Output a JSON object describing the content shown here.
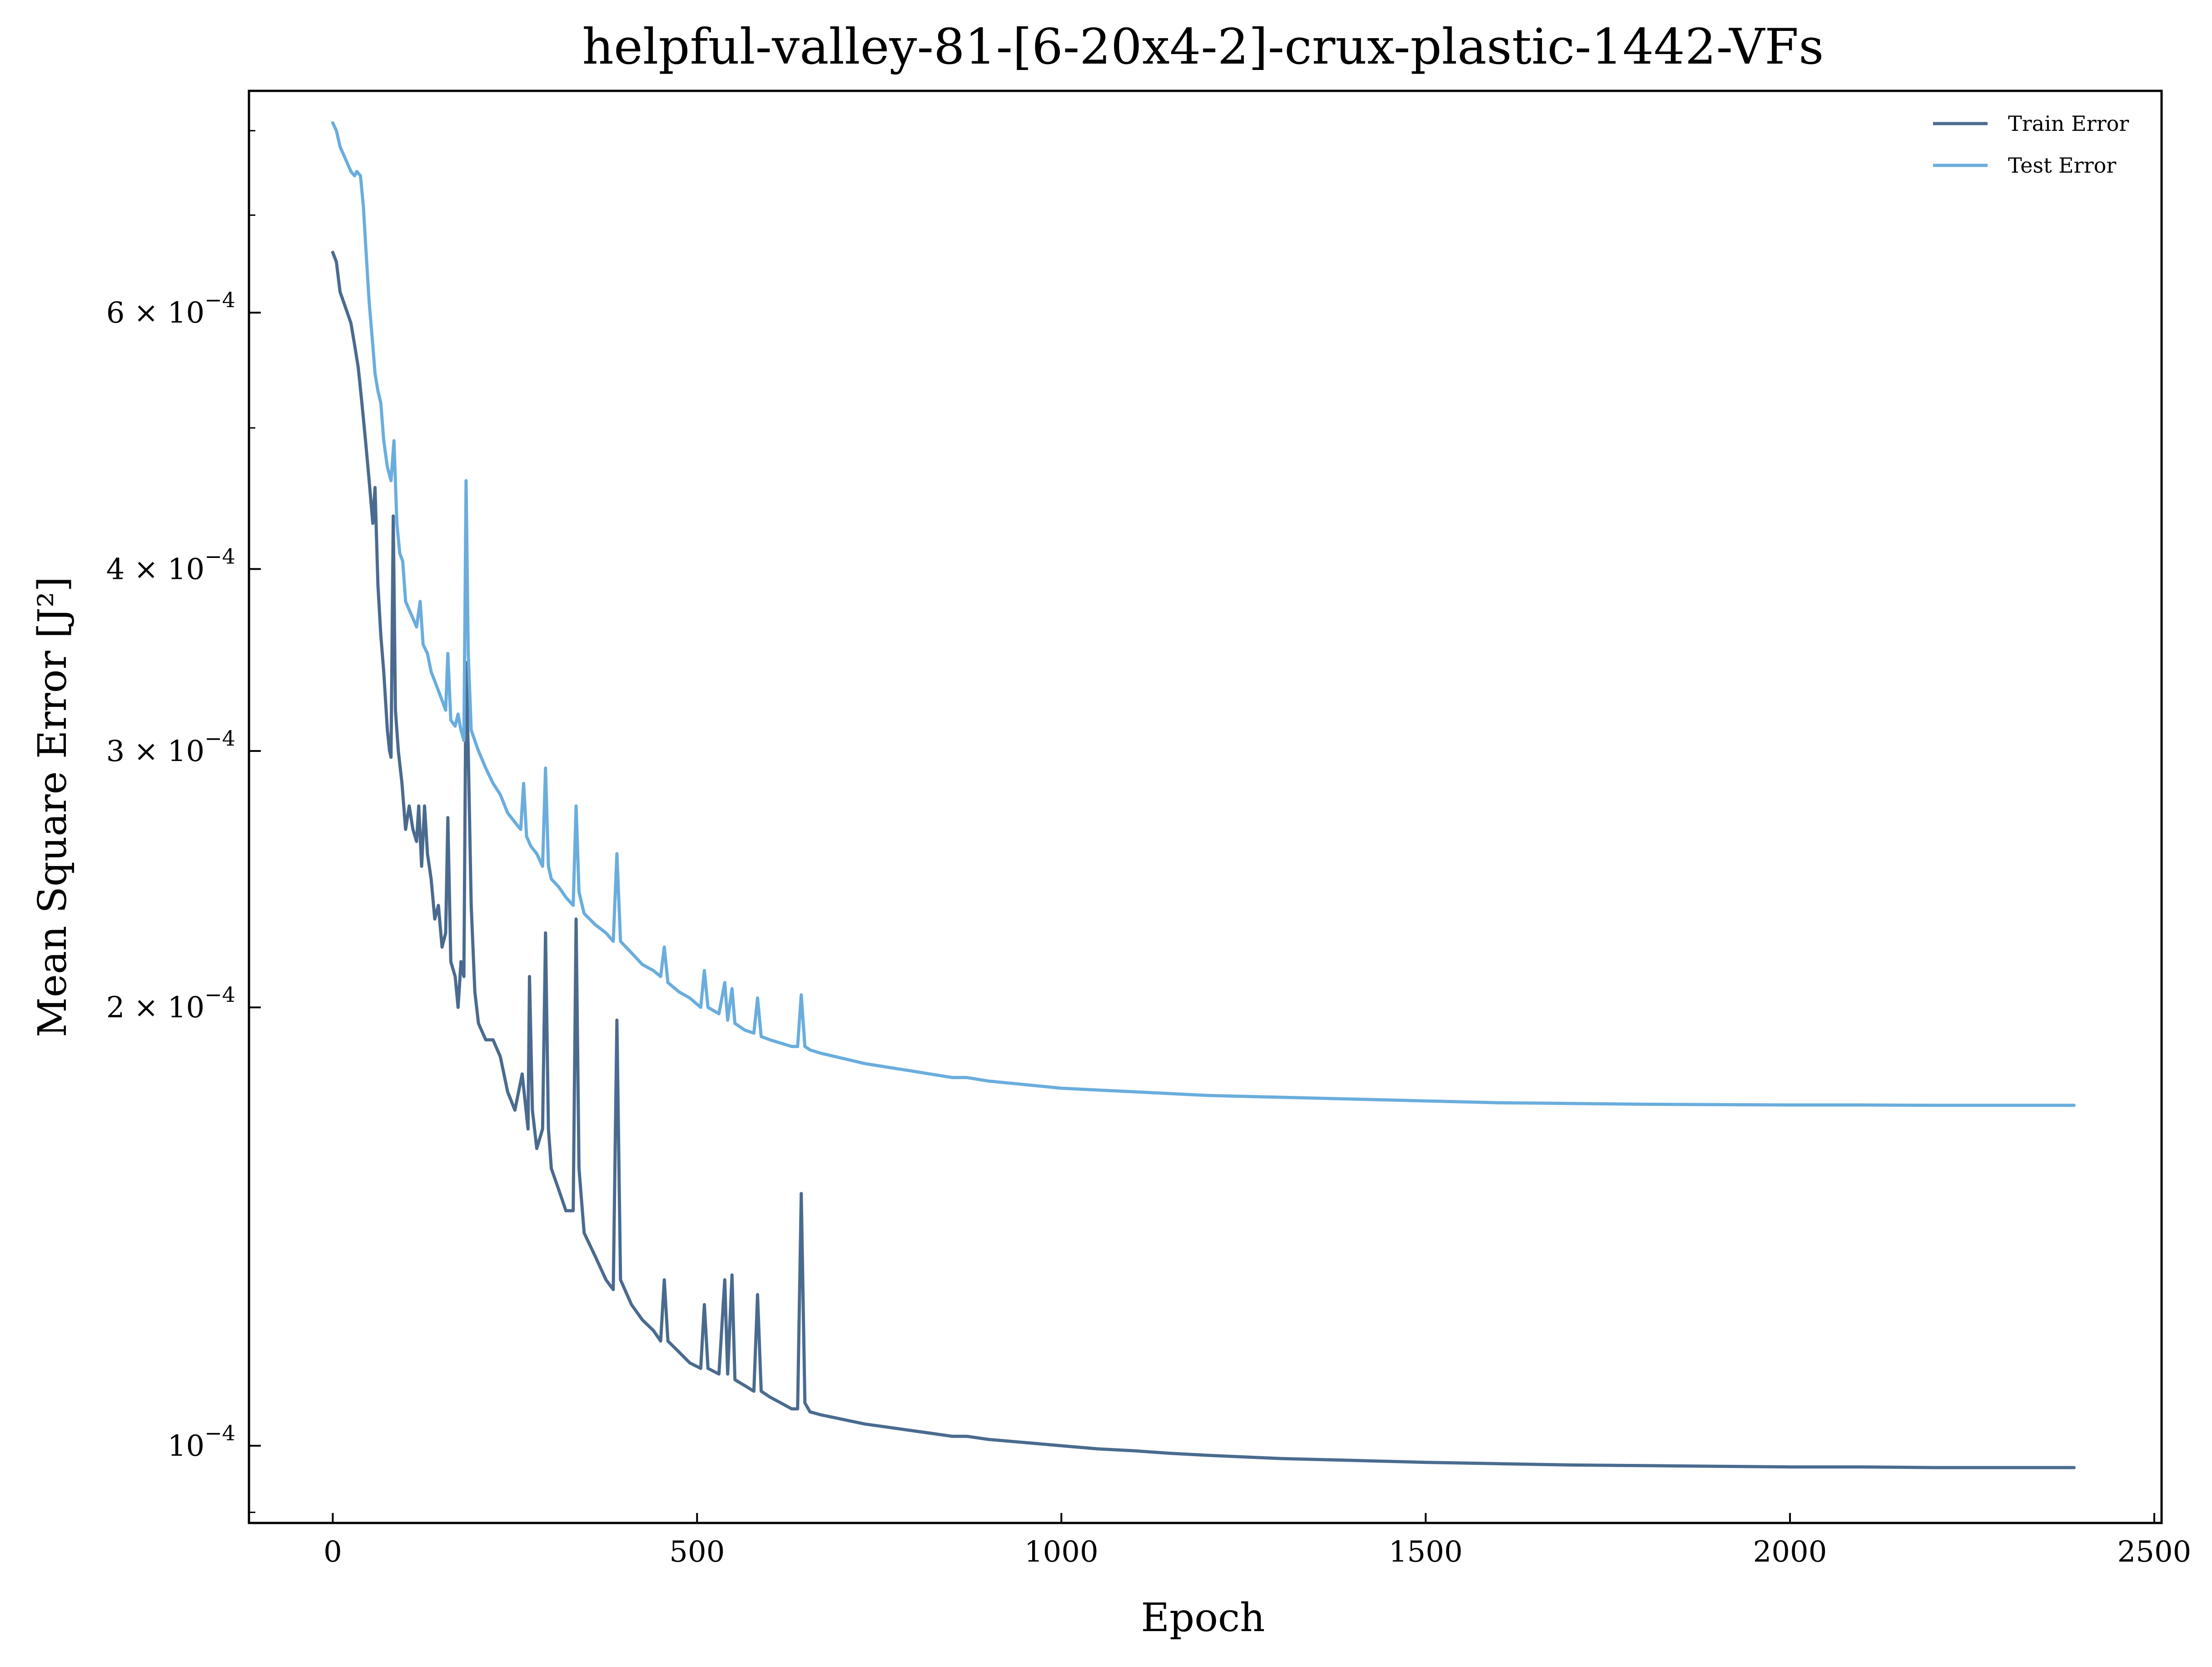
{
  "chart_data": {
    "type": "line",
    "title": "helpful-valley-81-[6-20x4-2]-crux-plastic-1442-VFs",
    "xlabel": "Epoch",
    "ylabel": "Mean Square Error [J²]",
    "xlim": [
      -115,
      2510
    ],
    "ylim": [
      8.85e-05,
      0.000852
    ],
    "yscale": "log",
    "legend_position": "top-right",
    "x_ticks": [
      0,
      500,
      1000,
      1500,
      2000,
      2500
    ],
    "x_tick_labels": [
      "0",
      "500",
      "1000",
      "1500",
      "2000",
      "2500"
    ],
    "y_ticks": [
      0.0001,
      0.0002,
      0.0003,
      0.0004,
      0.0006
    ],
    "y_tick_labels": [
      {
        "mantissa": "",
        "base": "10",
        "exp": "−4"
      },
      {
        "mantissa": "2 × ",
        "base": "10",
        "exp": "−4"
      },
      {
        "mantissa": "3 × ",
        "base": "10",
        "exp": "−4"
      },
      {
        "mantissa": "4 × ",
        "base": "10",
        "exp": "−4"
      },
      {
        "mantissa": "6 × ",
        "base": "10",
        "exp": "−4"
      }
    ],
    "y_minor_ticks": [
      9e-05,
      0.0005,
      0.0007,
      0.0008
    ],
    "series": [
      {
        "name": "Train Error",
        "color": "#4a6b8f",
        "points": [
          [
            0,
            0.00066
          ],
          [
            5,
            0.00065
          ],
          [
            10,
            0.00062
          ],
          [
            15,
            0.00061
          ],
          [
            20,
            0.0006
          ],
          [
            25,
            0.00059
          ],
          [
            30,
            0.00057
          ],
          [
            35,
            0.00055
          ],
          [
            40,
            0.00052
          ],
          [
            45,
            0.00049
          ],
          [
            50,
            0.00046
          ],
          [
            55,
            0.00043
          ],
          [
            58,
            0.000455
          ],
          [
            62,
            0.00039
          ],
          [
            66,
            0.00036
          ],
          [
            70,
            0.00034
          ],
          [
            75,
            0.00031
          ],
          [
            78,
            0.0003
          ],
          [
            80,
            0.000297
          ],
          [
            83,
            0.000435
          ],
          [
            86,
            0.00032
          ],
          [
            90,
            0.0003
          ],
          [
            95,
            0.000285
          ],
          [
            100,
            0.000265
          ],
          [
            105,
            0.000275
          ],
          [
            110,
            0.000265
          ],
          [
            115,
            0.00026
          ],
          [
            118,
            0.000275
          ],
          [
            122,
            0.00025
          ],
          [
            126,
            0.000275
          ],
          [
            130,
            0.000255
          ],
          [
            135,
            0.000245
          ],
          [
            140,
            0.00023
          ],
          [
            145,
            0.000235
          ],
          [
            150,
            0.00022
          ],
          [
            155,
            0.000225
          ],
          [
            158,
            0.00027
          ],
          [
            162,
            0.000215
          ],
          [
            168,
            0.00021
          ],
          [
            172,
            0.0002
          ],
          [
            176,
            0.000215
          ],
          [
            180,
            0.00021
          ],
          [
            183,
            0.000345
          ],
          [
            186,
            0.0003
          ],
          [
            190,
            0.000235
          ],
          [
            195,
            0.000205
          ],
          [
            200,
            0.000195
          ],
          [
            210,
            0.00019
          ],
          [
            220,
            0.00019
          ],
          [
            230,
            0.000185
          ],
          [
            240,
            0.000175
          ],
          [
            250,
            0.00017
          ],
          [
            260,
            0.00018
          ],
          [
            268,
            0.000165
          ],
          [
            270,
            0.00021
          ],
          [
            274,
            0.00017
          ],
          [
            280,
            0.00016
          ],
          [
            288,
            0.000165
          ],
          [
            292,
            0.000225
          ],
          [
            296,
            0.000165
          ],
          [
            300,
            0.000155
          ],
          [
            310,
            0.00015
          ],
          [
            320,
            0.000145
          ],
          [
            330,
            0.000145
          ],
          [
            334,
            0.00023
          ],
          [
            338,
            0.000155
          ],
          [
            345,
            0.00014
          ],
          [
            360,
            0.000135
          ],
          [
            375,
            0.00013
          ],
          [
            385,
            0.000128
          ],
          [
            390,
            0.000196
          ],
          [
            395,
            0.00013
          ],
          [
            410,
            0.000125
          ],
          [
            425,
            0.000122
          ],
          [
            440,
            0.00012
          ],
          [
            450,
            0.000118
          ],
          [
            455,
            0.00013
          ],
          [
            460,
            0.000118
          ],
          [
            475,
            0.000116
          ],
          [
            490,
            0.000114
          ],
          [
            505,
            0.000113
          ],
          [
            510,
            0.000125
          ],
          [
            515,
            0.000113
          ],
          [
            530,
            0.000112
          ],
          [
            538,
            0.00013
          ],
          [
            542,
            0.000112
          ],
          [
            548,
            0.000131
          ],
          [
            552,
            0.000111
          ],
          [
            565,
            0.00011
          ],
          [
            578,
            0.000109
          ],
          [
            583,
            0.000127
          ],
          [
            588,
            0.000109
          ],
          [
            600,
            0.000108
          ],
          [
            615,
            0.000107
          ],
          [
            630,
            0.000106
          ],
          [
            638,
            0.000106
          ],
          [
            643,
            0.000149
          ],
          [
            648,
            0.000107
          ],
          [
            655,
            0.0001055
          ],
          [
            670,
            0.000105
          ],
          [
            690,
            0.0001045
          ],
          [
            710,
            0.000104
          ],
          [
            730,
            0.0001035
          ],
          [
            760,
            0.000103
          ],
          [
            790,
            0.0001025
          ],
          [
            820,
            0.000102
          ],
          [
            850,
            0.0001015
          ],
          [
            870,
            0.0001015
          ],
          [
            900,
            0.000101
          ],
          [
            950,
            0.0001005
          ],
          [
            1000,
            0.0001
          ],
          [
            1050,
            9.95e-05
          ],
          [
            1100,
            9.92e-05
          ],
          [
            1150,
            9.88e-05
          ],
          [
            1200,
            9.85e-05
          ],
          [
            1300,
            9.8e-05
          ],
          [
            1400,
            9.77e-05
          ],
          [
            1500,
            9.74e-05
          ],
          [
            1600,
            9.72e-05
          ],
          [
            1700,
            9.7e-05
          ],
          [
            1800,
            9.69e-05
          ],
          [
            1900,
            9.68e-05
          ],
          [
            2000,
            9.67e-05
          ],
          [
            2100,
            9.67e-05
          ],
          [
            2200,
            9.66e-05
          ],
          [
            2300,
            9.66e-05
          ],
          [
            2390,
            9.66e-05
          ]
        ]
      },
      {
        "name": "Test Error",
        "color": "#6aaddd",
        "points": [
          [
            0,
            0.00081
          ],
          [
            5,
            0.0008
          ],
          [
            10,
            0.00078
          ],
          [
            15,
            0.00077
          ],
          [
            20,
            0.00076
          ],
          [
            25,
            0.00075
          ],
          [
            30,
            0.000745
          ],
          [
            33,
            0.00075
          ],
          [
            38,
            0.000745
          ],
          [
            42,
            0.00071
          ],
          [
            45,
            0.00067
          ],
          [
            50,
            0.00061
          ],
          [
            55,
            0.00057
          ],
          [
            58,
            0.000545
          ],
          [
            62,
            0.00053
          ],
          [
            66,
            0.00052
          ],
          [
            70,
            0.00049
          ],
          [
            75,
            0.00047
          ],
          [
            80,
            0.00046
          ],
          [
            84,
            0.00049
          ],
          [
            88,
            0.00043
          ],
          [
            92,
            0.00041
          ],
          [
            96,
            0.000405
          ],
          [
            100,
            0.00038
          ],
          [
            105,
            0.000375
          ],
          [
            110,
            0.00037
          ],
          [
            115,
            0.000365
          ],
          [
            120,
            0.00038
          ],
          [
            124,
            0.000355
          ],
          [
            130,
            0.00035
          ],
          [
            135,
            0.00034
          ],
          [
            140,
            0.000335
          ],
          [
            145,
            0.00033
          ],
          [
            150,
            0.000325
          ],
          [
            155,
            0.00032
          ],
          [
            158,
            0.00035
          ],
          [
            162,
            0.000315
          ],
          [
            168,
            0.000312
          ],
          [
            172,
            0.000318
          ],
          [
            176,
            0.00031
          ],
          [
            180,
            0.000305
          ],
          [
            183,
            0.00046
          ],
          [
            186,
            0.00035
          ],
          [
            190,
            0.00031
          ],
          [
            195,
            0.000305
          ],
          [
            200,
            0.0003
          ],
          [
            210,
            0.000292
          ],
          [
            220,
            0.000285
          ],
          [
            230,
            0.00028
          ],
          [
            240,
            0.000272
          ],
          [
            250,
            0.000268
          ],
          [
            258,
            0.000265
          ],
          [
            262,
            0.000285
          ],
          [
            266,
            0.000262
          ],
          [
            272,
            0.000258
          ],
          [
            280,
            0.000255
          ],
          [
            288,
            0.00025
          ],
          [
            292,
            0.000292
          ],
          [
            296,
            0.00025
          ],
          [
            300,
            0.000245
          ],
          [
            310,
            0.000242
          ],
          [
            320,
            0.000238
          ],
          [
            330,
            0.000235
          ],
          [
            334,
            0.000275
          ],
          [
            338,
            0.00024
          ],
          [
            345,
            0.000232
          ],
          [
            360,
            0.000228
          ],
          [
            375,
            0.000225
          ],
          [
            385,
            0.000222
          ],
          [
            390,
            0.000255
          ],
          [
            395,
            0.000222
          ],
          [
            410,
            0.000218
          ],
          [
            425,
            0.000214
          ],
          [
            440,
            0.000212
          ],
          [
            450,
            0.00021
          ],
          [
            455,
            0.00022
          ],
          [
            460,
            0.000208
          ],
          [
            475,
            0.000205
          ],
          [
            490,
            0.000203
          ],
          [
            505,
            0.0002
          ],
          [
            510,
            0.000212
          ],
          [
            515,
            0.0002
          ],
          [
            530,
            0.000198
          ],
          [
            538,
            0.000208
          ],
          [
            542,
            0.000196
          ],
          [
            548,
            0.000206
          ],
          [
            552,
            0.000195
          ],
          [
            565,
            0.000193
          ],
          [
            578,
            0.000192
          ],
          [
            583,
            0.000203
          ],
          [
            588,
            0.000191
          ],
          [
            600,
            0.00019
          ],
          [
            615,
            0.000189
          ],
          [
            630,
            0.000188
          ],
          [
            638,
            0.000188
          ],
          [
            643,
            0.000204
          ],
          [
            648,
            0.000188
          ],
          [
            655,
            0.000187
          ],
          [
            670,
            0.000186
          ],
          [
            690,
            0.000185
          ],
          [
            710,
            0.000184
          ],
          [
            730,
            0.000183
          ],
          [
            760,
            0.000182
          ],
          [
            790,
            0.000181
          ],
          [
            820,
            0.00018
          ],
          [
            850,
            0.000179
          ],
          [
            870,
            0.000179
          ],
          [
            900,
            0.000178
          ],
          [
            950,
            0.000177
          ],
          [
            1000,
            0.000176
          ],
          [
            1050,
            0.0001755
          ],
          [
            1100,
            0.000175
          ],
          [
            1150,
            0.0001745
          ],
          [
            1200,
            0.000174
          ],
          [
            1300,
            0.0001735
          ],
          [
            1400,
            0.000173
          ],
          [
            1500,
            0.0001725
          ],
          [
            1600,
            0.000172
          ],
          [
            1700,
            0.0001718
          ],
          [
            1800,
            0.0001716
          ],
          [
            1900,
            0.0001715
          ],
          [
            2000,
            0.0001714
          ],
          [
            2100,
            0.0001714
          ],
          [
            2200,
            0.0001713
          ],
          [
            2300,
            0.0001713
          ],
          [
            2390,
            0.0001713
          ]
        ]
      }
    ]
  }
}
